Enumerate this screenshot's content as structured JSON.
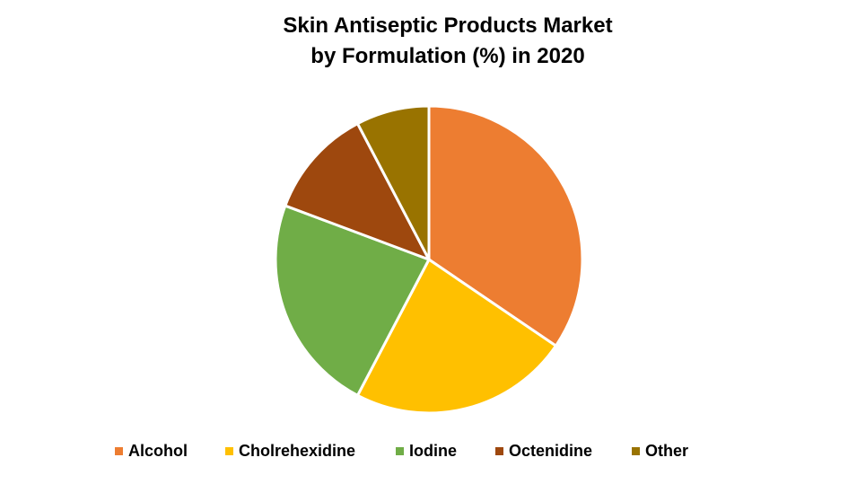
{
  "chart_data": {
    "type": "pie",
    "title_lines": [
      "Skin Antiseptic Products Market",
      "by Formulation (%) in 2020"
    ],
    "categories": [
      "Alcohol",
      "Cholrehexidine",
      "Iodine",
      "Octenidine",
      "Other"
    ],
    "values": [
      34.5,
      23.2,
      23.0,
      11.6,
      7.7
    ],
    "colors": [
      "#ED7D31",
      "#FFC000",
      "#70AD47",
      "#9E480E",
      "#997300"
    ],
    "legend_position": "bottom"
  }
}
